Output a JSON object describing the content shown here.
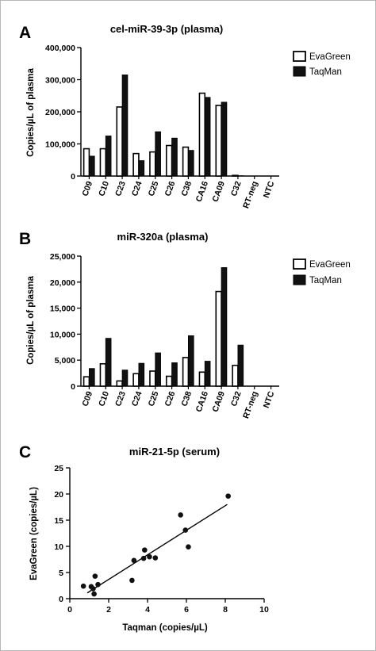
{
  "panels": [
    {
      "letter": "A"
    },
    {
      "letter": "B"
    },
    {
      "letter": "C"
    }
  ],
  "chart_data": [
    {
      "type": "bar",
      "title": "cel-miR-39-3p (plasma)",
      "ylabel": "Copies/µL of plasma",
      "xlabel": "",
      "ylim": [
        0,
        400000
      ],
      "yticks": [
        0,
        100000,
        200000,
        300000,
        400000
      ],
      "ytick_labels": [
        "0",
        "100,000",
        "200,000",
        "300,000",
        "400,000"
      ],
      "categories": [
        "C09",
        "C10",
        "C23",
        "C24",
        "C25",
        "C26",
        "C38",
        "CA16",
        "CA09",
        "C32",
        "RT-neg",
        "NTC"
      ],
      "series": [
        {
          "name": "EvaGreen",
          "color": "#ffffff",
          "values": [
            85000,
            85000,
            215000,
            70000,
            75000,
            95000,
            90000,
            258000,
            220000,
            2000,
            0,
            0
          ]
        },
        {
          "name": "TaqMan",
          "color": "#111111",
          "values": [
            62000,
            125000,
            315000,
            48000,
            138000,
            118000,
            80000,
            245000,
            230000,
            1000,
            0,
            0
          ]
        }
      ],
      "legend": "top-right"
    },
    {
      "type": "bar",
      "title": "miR-320a (plasma)",
      "ylabel": "Copies/µL of plasma",
      "xlabel": "",
      "ylim": [
        0,
        25000
      ],
      "yticks": [
        0,
        5000,
        10000,
        15000,
        20000,
        25000
      ],
      "ytick_labels": [
        "0",
        "5,000",
        "10,000",
        "15,000",
        "20,000",
        "25,000"
      ],
      "categories": [
        "C09",
        "C10",
        "C23",
        "C24",
        "C25",
        "C26",
        "C38",
        "CA16",
        "CA09",
        "C32",
        "RT-neg",
        "NTC"
      ],
      "series": [
        {
          "name": "EvaGreen",
          "color": "#ffffff",
          "values": [
            1800,
            4300,
            1000,
            2400,
            2900,
            1900,
            5500,
            2700,
            18200,
            4000,
            0,
            0
          ]
        },
        {
          "name": "TaqMan",
          "color": "#111111",
          "values": [
            3400,
            9200,
            3100,
            4400,
            6400,
            4500,
            9700,
            4800,
            22800,
            7900,
            0,
            0
          ]
        }
      ],
      "legend": "top-right"
    },
    {
      "type": "scatter",
      "title": "miR-21-5p (serum)",
      "xlabel": "Taqman (copies/µL)",
      "ylabel": "EvaGreen (copies/µL)",
      "xlim": [
        0,
        10
      ],
      "ylim": [
        0,
        25
      ],
      "xticks": [
        0,
        2,
        4,
        6,
        8,
        10
      ],
      "yticks": [
        0,
        5,
        10,
        15,
        20,
        25
      ],
      "points": [
        {
          "x": 0.7,
          "y": 2.4
        },
        {
          "x": 1.1,
          "y": 2.3
        },
        {
          "x": 1.2,
          "y": 1.9
        },
        {
          "x": 1.25,
          "y": 0.9
        },
        {
          "x": 1.3,
          "y": 4.3
        },
        {
          "x": 1.45,
          "y": 2.7
        },
        {
          "x": 3.2,
          "y": 3.5
        },
        {
          "x": 3.3,
          "y": 7.3
        },
        {
          "x": 3.8,
          "y": 7.7
        },
        {
          "x": 3.85,
          "y": 9.3
        },
        {
          "x": 4.1,
          "y": 8.0
        },
        {
          "x": 4.4,
          "y": 7.8
        },
        {
          "x": 5.7,
          "y": 16.0
        },
        {
          "x": 5.95,
          "y": 13.1
        },
        {
          "x": 6.1,
          "y": 9.9
        },
        {
          "x": 8.15,
          "y": 19.6
        }
      ],
      "fit_line": [
        {
          "x": 0.9,
          "y": 1.1
        },
        {
          "x": 8.1,
          "y": 18.0
        }
      ],
      "marker_color": "#111111"
    }
  ]
}
